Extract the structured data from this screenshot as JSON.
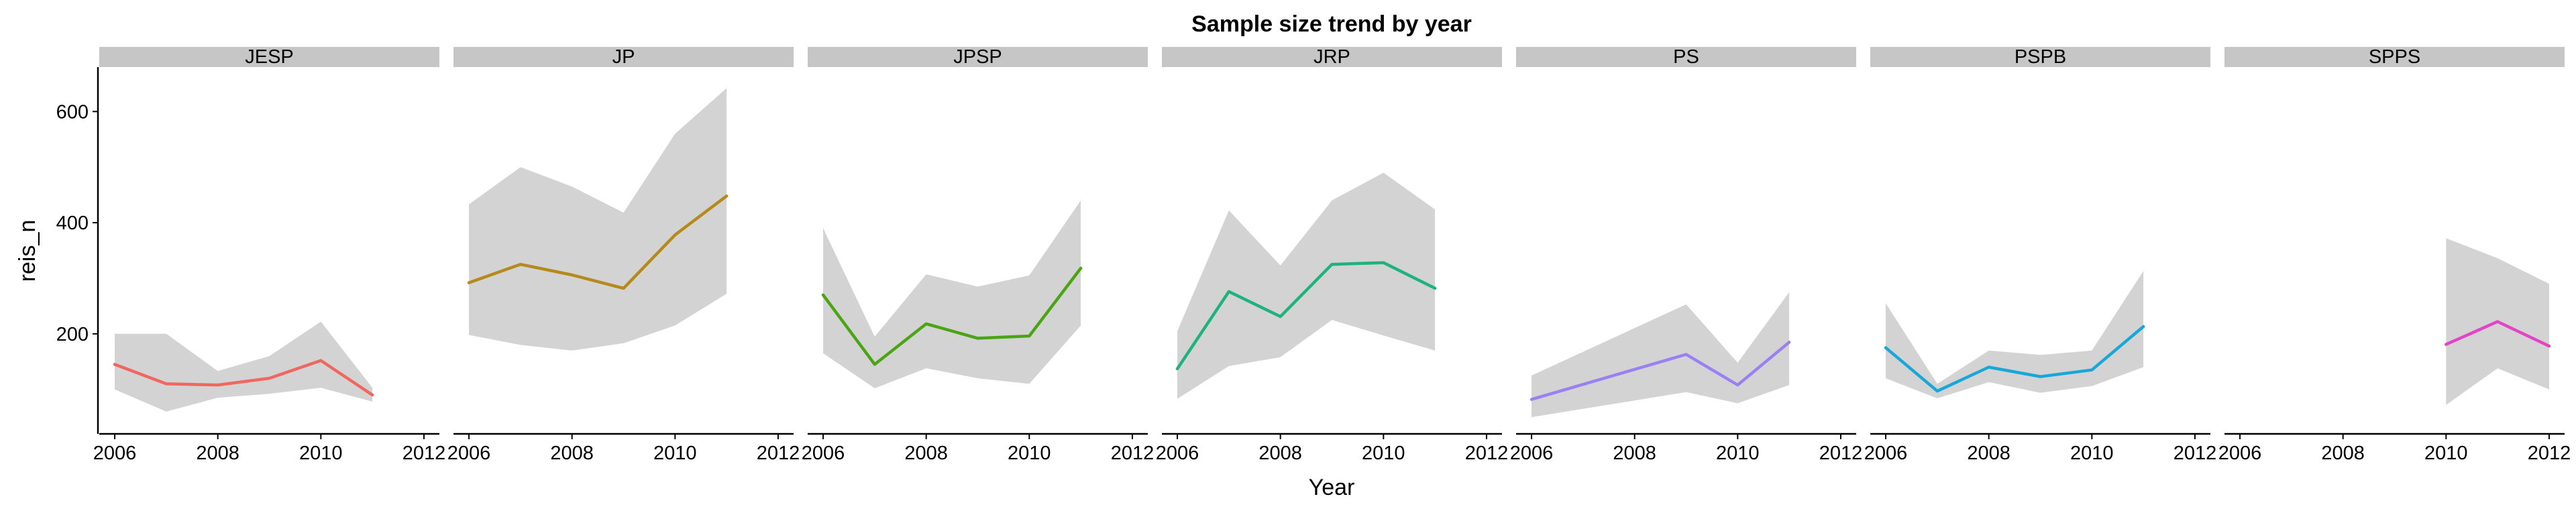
{
  "chart_data": {
    "type": "line",
    "title": "Sample size trend by year",
    "xlabel": "Year",
    "ylabel": "reis_n",
    "xlim": [
      2005.7,
      2012.3
    ],
    "ylim": [
      20,
      680
    ],
    "xticks": [
      "2006",
      "2008",
      "2010",
      "2012"
    ],
    "yticks": [
      "200",
      "400",
      "600"
    ],
    "grid": false,
    "legend": "none",
    "band_color": "#d3d3d3",
    "strip_color": "#c6c6c6",
    "panels": [
      {
        "name": "JESP",
        "color": "#f0675f",
        "x": [
          2006,
          2007,
          2008,
          2009,
          2010,
          2011
        ],
        "mean": [
          145,
          110,
          108,
          120,
          152,
          90
        ],
        "lower": [
          100,
          60,
          85,
          92,
          103,
          78
        ],
        "upper": [
          200,
          200,
          133,
          160,
          222,
          103
        ]
      },
      {
        "name": "JP",
        "color": "#b5891a",
        "x": [
          2006,
          2007,
          2008,
          2009,
          2010,
          2011
        ],
        "mean": [
          292,
          325,
          306,
          282,
          378,
          448
        ],
        "lower": [
          198,
          180,
          170,
          183,
          215,
          272
        ],
        "upper": [
          433,
          500,
          465,
          418,
          560,
          642
        ]
      },
      {
        "name": "JPSP",
        "color": "#4aa514",
        "x": [
          2006,
          2007,
          2008,
          2009,
          2010,
          2011
        ],
        "mean": [
          270,
          145,
          218,
          192,
          196,
          318
        ],
        "lower": [
          165,
          102,
          138,
          120,
          110,
          215
        ],
        "upper": [
          390,
          195,
          307,
          285,
          305,
          440
        ]
      },
      {
        "name": "JRP",
        "color": "#1eb37d",
        "x": [
          2006,
          2007,
          2008,
          2009,
          2010,
          2011
        ],
        "mean": [
          137,
          276,
          231,
          325,
          328,
          282
        ],
        "lower": [
          83,
          142,
          158,
          225,
          197,
          170
        ],
        "upper": [
          205,
          422,
          323,
          440,
          490,
          424
        ]
      },
      {
        "name": "PS",
        "color": "#9a80f5",
        "x": [
          2006,
          2009,
          2010,
          2011
        ],
        "mean": [
          82,
          163,
          108,
          185
        ],
        "lower": [
          50,
          95,
          75,
          108
        ],
        "upper": [
          125,
          253,
          148,
          275
        ]
      },
      {
        "name": "PSPB",
        "color": "#18a7db",
        "x": [
          2006,
          2007,
          2008,
          2009,
          2010,
          2011
        ],
        "mean": [
          175,
          97,
          140,
          123,
          135,
          213
        ],
        "lower": [
          120,
          84,
          113,
          94,
          106,
          140
        ],
        "upper": [
          255,
          110,
          170,
          162,
          170,
          313
        ]
      },
      {
        "name": "SPPS",
        "color": "#e443c6",
        "x": [
          2010,
          2011,
          2012
        ],
        "mean": [
          181,
          222,
          178
        ],
        "lower": [
          72,
          138,
          100
        ],
        "upper": [
          372,
          336,
          290
        ]
      }
    ]
  }
}
